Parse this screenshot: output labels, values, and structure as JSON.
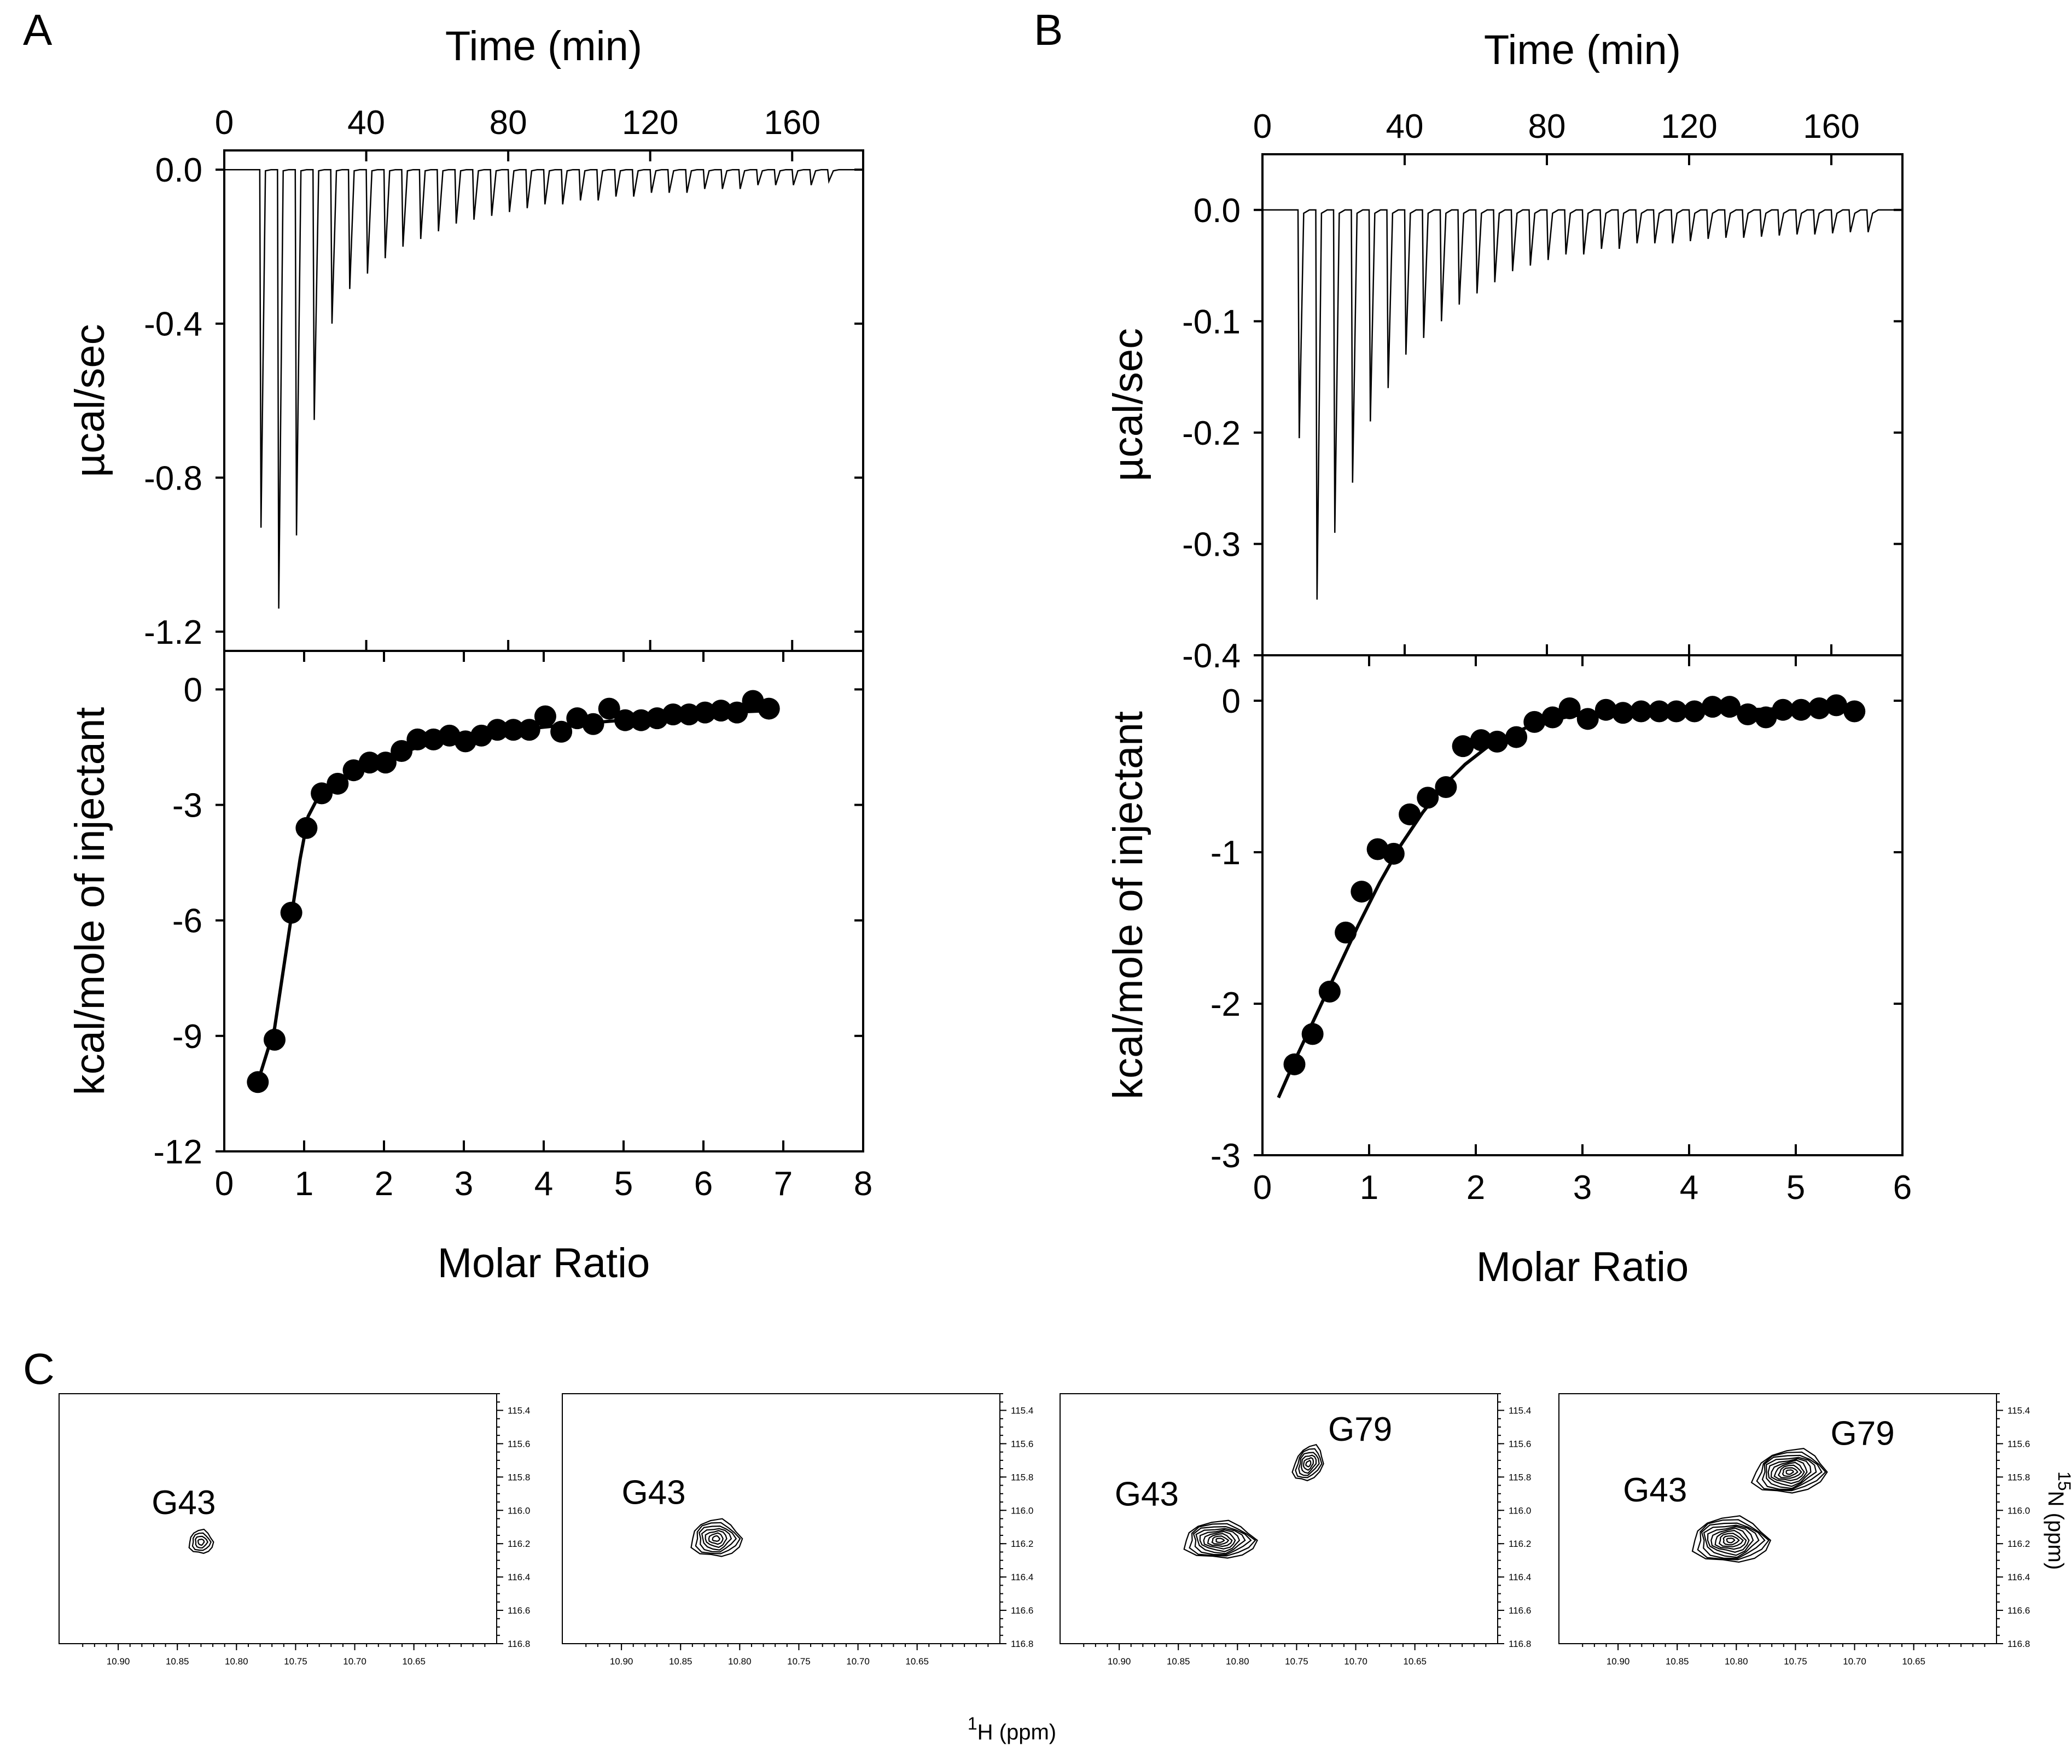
{
  "panel_letters": [
    "A",
    "B",
    "C"
  ],
  "chart_data": [
    {
      "id": "A",
      "type": "line",
      "title": "",
      "top": {
        "type": "line",
        "xlabel": "Time (min)",
        "ylabel": "µcal/sec",
        "xlim": [
          0,
          180
        ],
        "ylim": [
          -1.25,
          0.05
        ],
        "xticks": [
          "0",
          "40",
          "80",
          "120",
          "160"
        ],
        "xtick_values": [
          0,
          40,
          80,
          120,
          160
        ],
        "yticks": [
          "0.0",
          "-0.4",
          "-0.8",
          "-1.2"
        ],
        "ytick_values": [
          0.0,
          -0.4,
          -0.8,
          -1.2
        ],
        "injection_start_min": 10,
        "injection_interval_min": 5,
        "peak_depths": [
          -0.93,
          -1.14,
          -0.95,
          -0.65,
          -0.4,
          -0.31,
          -0.27,
          -0.23,
          -0.2,
          -0.18,
          -0.16,
          -0.14,
          -0.13,
          -0.12,
          -0.11,
          -0.1,
          -0.09,
          -0.09,
          -0.08,
          -0.08,
          -0.07,
          -0.07,
          -0.06,
          -0.06,
          -0.06,
          -0.05,
          -0.05,
          -0.05,
          -0.04,
          -0.04,
          -0.04,
          -0.04,
          -0.03
        ]
      },
      "bottom": {
        "type": "scatter",
        "xlabel": "Molar Ratio",
        "ylabel": "kcal/mole of injectant",
        "xlim": [
          0,
          8
        ],
        "ylim": [
          -12,
          1
        ],
        "xticks": [
          "0",
          "1",
          "2",
          "3",
          "4",
          "5",
          "6",
          "7",
          "8"
        ],
        "xtick_values": [
          0,
          1,
          2,
          3,
          4,
          5,
          6,
          7,
          8
        ],
        "yticks": [
          "0",
          "-3",
          "-6",
          "-9",
          "-12"
        ],
        "ytick_values": [
          0,
          -3,
          -6,
          -9,
          -12
        ],
        "points": {
          "x": [
            0.42,
            0.63,
            0.84,
            1.03,
            1.22,
            1.42,
            1.62,
            1.82,
            2.02,
            2.22,
            2.42,
            2.62,
            2.82,
            3.02,
            3.22,
            3.42,
            3.62,
            3.82,
            4.02,
            4.22,
            4.42,
            4.62,
            4.82,
            5.02,
            5.22,
            5.42,
            5.62,
            5.82,
            6.02,
            6.22,
            6.42,
            6.62,
            6.82
          ],
          "y": [
            -10.2,
            -9.1,
            -5.8,
            -3.6,
            -2.7,
            -2.45,
            -2.1,
            -1.9,
            -1.9,
            -1.6,
            -1.3,
            -1.3,
            -1.2,
            -1.35,
            -1.2,
            -1.05,
            -1.05,
            -1.05,
            -0.7,
            -1.1,
            -0.75,
            -0.9,
            -0.5,
            -0.8,
            -0.8,
            -0.75,
            -0.65,
            -0.65,
            -0.6,
            -0.55,
            -0.6,
            -0.3,
            -0.5
          ]
        },
        "fit": {
          "x": [
            0.42,
            0.63,
            0.84,
            0.95,
            1.05,
            1.2,
            1.4,
            1.7,
            2.0,
            2.5,
            3.0,
            3.5,
            4.0,
            4.5,
            5.0,
            5.5,
            6.0,
            6.5,
            6.82
          ],
          "y": [
            -10.2,
            -8.8,
            -5.9,
            -4.4,
            -3.3,
            -2.7,
            -2.35,
            -2.05,
            -1.8,
            -1.45,
            -1.25,
            -1.1,
            -0.98,
            -0.88,
            -0.8,
            -0.72,
            -0.65,
            -0.58,
            -0.55
          ]
        }
      }
    },
    {
      "id": "B",
      "type": "line",
      "title": "",
      "top": {
        "type": "line",
        "xlabel": "Time (min)",
        "ylabel": "µcal/sec",
        "xlim": [
          0,
          180
        ],
        "ylim": [
          -0.4,
          0.05
        ],
        "xticks": [
          "0",
          "40",
          "80",
          "120",
          "160"
        ],
        "xtick_values": [
          0,
          40,
          80,
          120,
          160
        ],
        "yticks": [
          "0.0",
          "-0.1",
          "-0.2",
          "-0.3",
          "-0.4"
        ],
        "ytick_values": [
          0.0,
          -0.1,
          -0.2,
          -0.3,
          -0.4
        ],
        "injection_start_min": 10,
        "injection_interval_min": 5,
        "peak_depths": [
          -0.205,
          -0.35,
          -0.29,
          -0.245,
          -0.19,
          -0.16,
          -0.13,
          -0.115,
          -0.1,
          -0.085,
          -0.075,
          -0.065,
          -0.055,
          -0.05,
          -0.045,
          -0.04,
          -0.04,
          -0.035,
          -0.035,
          -0.03,
          -0.03,
          -0.03,
          -0.028,
          -0.026,
          -0.025,
          -0.025,
          -0.024,
          -0.023,
          -0.022,
          -0.022,
          -0.021,
          -0.02,
          -0.02
        ]
      },
      "bottom": {
        "type": "scatter",
        "xlabel": "Molar Ratio",
        "ylabel": "kcal/mole of injectant",
        "xlim": [
          0,
          6
        ],
        "ylim": [
          -3,
          0.3
        ],
        "xticks": [
          "0",
          "1",
          "2",
          "3",
          "4",
          "5",
          "6"
        ],
        "xtick_values": [
          0,
          1,
          2,
          3,
          4,
          5,
          6
        ],
        "yticks": [
          "0",
          "-1",
          "-2",
          "-3"
        ],
        "ytick_values": [
          0,
          -1,
          -2,
          -3
        ],
        "points": {
          "x": [
            0.3,
            0.47,
            0.63,
            0.78,
            0.93,
            1.08,
            1.23,
            1.38,
            1.55,
            1.72,
            1.88,
            2.05,
            2.2,
            2.38,
            2.55,
            2.72,
            2.88,
            3.05,
            3.22,
            3.38,
            3.55,
            3.72,
            3.88,
            4.05,
            4.22,
            4.38,
            4.55,
            4.72,
            4.88,
            5.05,
            5.22,
            5.38,
            5.55
          ],
          "y": [
            -2.4,
            -2.2,
            -1.92,
            -1.53,
            -1.26,
            -0.98,
            -1.01,
            -0.75,
            -0.64,
            -0.57,
            -0.3,
            -0.26,
            -0.27,
            -0.24,
            -0.14,
            -0.11,
            -0.05,
            -0.12,
            -0.06,
            -0.08,
            -0.07,
            -0.07,
            -0.07,
            -0.07,
            -0.04,
            -0.04,
            -0.09,
            -0.11,
            -0.06,
            -0.06,
            -0.05,
            -0.03,
            -0.07
          ]
        },
        "fit": {
          "x": [
            0.15,
            0.3,
            0.5,
            0.7,
            0.9,
            1.1,
            1.3,
            1.5,
            1.7,
            1.9,
            2.1,
            2.3,
            2.5,
            2.7,
            2.9,
            3.2,
            3.6,
            4.0,
            4.5,
            5.0,
            5.55
          ],
          "y": [
            -2.62,
            -2.38,
            -2.08,
            -1.78,
            -1.48,
            -1.2,
            -0.95,
            -0.74,
            -0.56,
            -0.42,
            -0.31,
            -0.23,
            -0.17,
            -0.13,
            -0.1,
            -0.08,
            -0.07,
            -0.06,
            -0.06,
            -0.05,
            -0.05
          ]
        }
      }
    },
    {
      "id": "C",
      "type": "heatmap",
      "xlabel": "1H (ppm)",
      "xlabel_sup": "1",
      "xlabel_text": "H (ppm)",
      "ylabel": "15N (ppm)",
      "ylabel_sup": "15",
      "ylabel_text": "N (ppm)",
      "xlim": [
        10.95,
        10.58
      ],
      "ylim": [
        116.8,
        115.3
      ],
      "xticks": [
        "10.90",
        "10.85",
        "10.80",
        "10.75",
        "10.70",
        "10.65"
      ],
      "xtick_values": [
        10.9,
        10.85,
        10.8,
        10.75,
        10.7,
        10.65
      ],
      "yticks": [
        "115.4",
        "115.6",
        "115.8",
        "116.0",
        "116.2",
        "116.4",
        "116.6",
        "116.8"
      ],
      "ytick_values": [
        115.4,
        115.6,
        115.8,
        116.0,
        116.2,
        116.4,
        116.6,
        116.8
      ],
      "spectra": [
        {
          "peaks": [
            {
              "label": "G43",
              "h": 10.83,
              "n": 116.19,
              "levels": 4,
              "w": 0.01,
              "hgt": 0.14
            }
          ]
        },
        {
          "peaks": [
            {
              "label": "G43",
              "h": 10.82,
              "n": 116.17,
              "levels": 7,
              "w": 0.021,
              "hgt": 0.22
            }
          ]
        },
        {
          "peaks": [
            {
              "label": "G43",
              "h": 10.815,
              "n": 116.18,
              "levels": 9,
              "w": 0.03,
              "hgt": 0.22
            },
            {
              "label": "G79",
              "h": 10.74,
              "n": 115.72,
              "levels": 6,
              "w": 0.012,
              "hgt": 0.21
            }
          ]
        },
        {
          "peaks": [
            {
              "label": "G43",
              "h": 10.805,
              "n": 116.18,
              "levels": 10,
              "w": 0.032,
              "hgt": 0.27
            },
            {
              "label": "G79",
              "h": 10.755,
              "n": 115.77,
              "levels": 10,
              "w": 0.03,
              "hgt": 0.26
            }
          ]
        }
      ]
    }
  ]
}
